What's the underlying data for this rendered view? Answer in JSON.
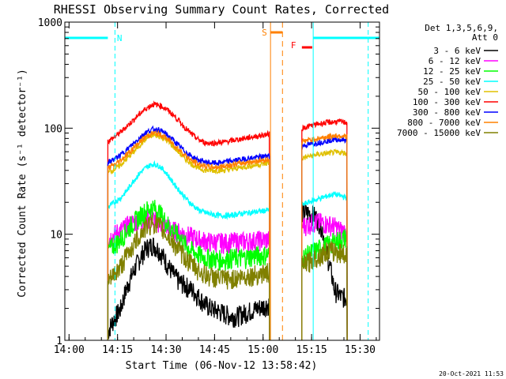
{
  "chart_data": {
    "type": "line",
    "title": "RHESSI Observing Summary Count Rates, Corrected",
    "xlabel": "Start Time (06-Nov-12 13:58:42)",
    "ylabel": "Corrected Count Rate (s⁻¹ detector⁻¹)",
    "ylog": true,
    "ylim": [
      1,
      1000
    ],
    "xlim_minutes": [
      -1.3,
      36.8
    ],
    "x_ticks": [
      {
        "m": 0,
        "label": "14:00"
      },
      {
        "m": 15,
        "label": "14:15"
      },
      {
        "m": 30,
        "label": "14:30"
      },
      {
        "m": 45,
        "label": "14:45"
      },
      {
        "m": 60,
        "label": "15:00"
      },
      {
        "m": 75,
        "label": "15:15"
      },
      {
        "m": 90,
        "label": "15:30"
      }
    ],
    "y_ticks": [
      {
        "v": 1,
        "label": "1"
      },
      {
        "v": 10,
        "label": "10"
      },
      {
        "v": 100,
        "label": "100"
      },
      {
        "v": 1000,
        "label": "1000"
      }
    ],
    "legend_header": [
      "Det 1,3,5,6,9,",
      "Att 0"
    ],
    "legend_placement": "right",
    "series": [
      {
        "name": "3 - 6 keV",
        "color": "#000000",
        "seg1": [
          [
            12,
            1.2
          ],
          [
            14,
            1.6
          ],
          [
            16,
            2.0
          ],
          [
            18,
            3.2
          ],
          [
            20,
            4.5
          ],
          [
            22,
            6.0
          ],
          [
            24,
            7.5
          ],
          [
            26,
            8.0
          ],
          [
            28,
            7.0
          ],
          [
            30,
            5.5
          ],
          [
            32,
            4.3
          ],
          [
            34,
            3.6
          ],
          [
            36,
            3.3
          ],
          [
            38,
            3.0
          ],
          [
            40,
            2.6
          ],
          [
            42,
            2.2
          ],
          [
            44,
            2.0
          ],
          [
            46,
            1.9
          ],
          [
            48,
            1.8
          ],
          [
            50,
            1.7
          ],
          [
            52,
            1.7
          ],
          [
            54,
            1.8
          ],
          [
            56,
            1.9
          ],
          [
            58,
            2.0
          ],
          [
            60,
            2.1
          ],
          [
            62,
            2.2
          ]
        ],
        "seg2": [
          [
            72,
            16
          ],
          [
            74,
            16
          ],
          [
            76,
            15
          ],
          [
            78,
            12
          ],
          [
            80,
            6
          ],
          [
            82,
            3
          ],
          [
            84,
            2.6
          ],
          [
            86,
            2.5
          ]
        ]
      },
      {
        "name": "6 - 12 keV",
        "color": "#ff00ff",
        "seg1": [
          [
            12,
            9
          ],
          [
            14,
            10
          ],
          [
            16,
            11
          ],
          [
            18,
            12
          ],
          [
            20,
            13
          ],
          [
            22,
            13.5
          ],
          [
            24,
            14
          ],
          [
            26,
            14
          ],
          [
            28,
            13
          ],
          [
            30,
            12
          ],
          [
            32,
            11
          ],
          [
            34,
            10.5
          ],
          [
            36,
            10
          ],
          [
            38,
            9.5
          ],
          [
            40,
            9
          ],
          [
            42,
            8.7
          ],
          [
            44,
            8.5
          ],
          [
            46,
            8.5
          ],
          [
            48,
            8.4
          ],
          [
            50,
            8.5
          ],
          [
            52,
            8.6
          ],
          [
            54,
            8.6
          ],
          [
            56,
            8.7
          ],
          [
            58,
            8.8
          ],
          [
            60,
            8.9
          ],
          [
            62,
            9
          ]
        ],
        "seg2": [
          [
            72,
            12
          ],
          [
            74,
            12.5
          ],
          [
            76,
            13
          ],
          [
            78,
            13
          ],
          [
            80,
            12.5
          ],
          [
            82,
            12
          ],
          [
            84,
            11
          ],
          [
            86,
            10.5
          ]
        ]
      },
      {
        "name": "12 - 25 keV",
        "color": "#00ff00",
        "seg1": [
          [
            12,
            7
          ],
          [
            14,
            8
          ],
          [
            16,
            9
          ],
          [
            18,
            11
          ],
          [
            20,
            13
          ],
          [
            22,
            15
          ],
          [
            24,
            17
          ],
          [
            26,
            18
          ],
          [
            28,
            16
          ],
          [
            30,
            13
          ],
          [
            32,
            11
          ],
          [
            34,
            9.5
          ],
          [
            36,
            8
          ],
          [
            38,
            7
          ],
          [
            40,
            6.5
          ],
          [
            42,
            6
          ],
          [
            44,
            6
          ],
          [
            46,
            5.8
          ],
          [
            48,
            5.8
          ],
          [
            50,
            6
          ],
          [
            52,
            6
          ],
          [
            54,
            6
          ],
          [
            56,
            6.2
          ],
          [
            58,
            6.3
          ],
          [
            60,
            6.4
          ],
          [
            62,
            6.5
          ]
        ],
        "seg2": [
          [
            72,
            6
          ],
          [
            74,
            6.5
          ],
          [
            76,
            7
          ],
          [
            78,
            7.5
          ],
          [
            80,
            8
          ],
          [
            82,
            8.5
          ],
          [
            84,
            9
          ],
          [
            86,
            9.5
          ]
        ]
      },
      {
        "name": "25 - 50 keV",
        "color": "#00ffff",
        "seg1": [
          [
            12,
            18
          ],
          [
            14,
            20
          ],
          [
            16,
            22
          ],
          [
            18,
            26
          ],
          [
            20,
            32
          ],
          [
            22,
            38
          ],
          [
            24,
            43
          ],
          [
            26,
            46
          ],
          [
            28,
            44
          ],
          [
            30,
            38
          ],
          [
            32,
            31
          ],
          [
            34,
            26
          ],
          [
            36,
            22
          ],
          [
            38,
            19
          ],
          [
            40,
            17
          ],
          [
            42,
            16
          ],
          [
            44,
            15.5
          ],
          [
            46,
            15
          ],
          [
            48,
            15
          ],
          [
            50,
            15
          ],
          [
            52,
            15.5
          ],
          [
            54,
            15.8
          ],
          [
            56,
            16
          ],
          [
            58,
            16.3
          ],
          [
            60,
            16.6
          ],
          [
            62,
            17
          ]
        ],
        "seg2": [
          [
            72,
            19
          ],
          [
            74,
            20
          ],
          [
            76,
            21
          ],
          [
            78,
            22
          ],
          [
            80,
            23
          ],
          [
            82,
            24
          ],
          [
            84,
            23
          ],
          [
            86,
            22
          ]
        ]
      },
      {
        "name": "50 - 100 keV",
        "color": "#e0c000",
        "seg1": [
          [
            12,
            38
          ],
          [
            14,
            41
          ],
          [
            16,
            45
          ],
          [
            18,
            52
          ],
          [
            20,
            60
          ],
          [
            22,
            70
          ],
          [
            24,
            80
          ],
          [
            26,
            86
          ],
          [
            28,
            84
          ],
          [
            30,
            77
          ],
          [
            32,
            68
          ],
          [
            34,
            59
          ],
          [
            36,
            51
          ],
          [
            38,
            46
          ],
          [
            40,
            42
          ],
          [
            42,
            40
          ],
          [
            44,
            40
          ],
          [
            46,
            40
          ],
          [
            48,
            40
          ],
          [
            50,
            41
          ],
          [
            52,
            42
          ],
          [
            54,
            43
          ],
          [
            56,
            44
          ],
          [
            58,
            45
          ],
          [
            60,
            46
          ],
          [
            62,
            47
          ]
        ],
        "seg2": [
          [
            72,
            52
          ],
          [
            74,
            54
          ],
          [
            76,
            56
          ],
          [
            78,
            57
          ],
          [
            80,
            58
          ],
          [
            82,
            59
          ],
          [
            84,
            59
          ],
          [
            86,
            58
          ]
        ]
      },
      {
        "name": "100 - 300 keV",
        "color": "#ff0000",
        "seg1": [
          [
            12,
            75
          ],
          [
            14,
            82
          ],
          [
            16,
            92
          ],
          [
            18,
            105
          ],
          [
            20,
            120
          ],
          [
            22,
            138
          ],
          [
            24,
            155
          ],
          [
            26,
            168
          ],
          [
            28,
            165
          ],
          [
            30,
            152
          ],
          [
            32,
            135
          ],
          [
            34,
            117
          ],
          [
            36,
            100
          ],
          [
            38,
            87
          ],
          [
            40,
            78
          ],
          [
            42,
            73
          ],
          [
            44,
            72
          ],
          [
            46,
            73
          ],
          [
            48,
            74
          ],
          [
            50,
            76
          ],
          [
            52,
            78
          ],
          [
            54,
            80
          ],
          [
            56,
            82
          ],
          [
            58,
            84
          ],
          [
            60,
            86
          ],
          [
            62,
            88
          ]
        ],
        "seg2": [
          [
            72,
            100
          ],
          [
            74,
            104
          ],
          [
            76,
            108
          ],
          [
            78,
            111
          ],
          [
            80,
            113
          ],
          [
            82,
            115
          ],
          [
            84,
            115
          ],
          [
            86,
            113
          ]
        ]
      },
      {
        "name": "300 - 800 keV",
        "color": "#0000ff",
        "seg1": [
          [
            12,
            47
          ],
          [
            14,
            51
          ],
          [
            16,
            56
          ],
          [
            18,
            63
          ],
          [
            20,
            72
          ],
          [
            22,
            82
          ],
          [
            24,
            92
          ],
          [
            26,
            98
          ],
          [
            28,
            96
          ],
          [
            30,
            88
          ],
          [
            32,
            78
          ],
          [
            34,
            68
          ],
          [
            36,
            60
          ],
          [
            38,
            54
          ],
          [
            40,
            50
          ],
          [
            42,
            48
          ],
          [
            44,
            47
          ],
          [
            46,
            47
          ],
          [
            48,
            48
          ],
          [
            50,
            49
          ],
          [
            52,
            50
          ],
          [
            54,
            51
          ],
          [
            56,
            52
          ],
          [
            58,
            53
          ],
          [
            60,
            54
          ],
          [
            62,
            56
          ]
        ],
        "seg2": [
          [
            72,
            68
          ],
          [
            74,
            70
          ],
          [
            76,
            72
          ],
          [
            78,
            74
          ],
          [
            80,
            76
          ],
          [
            82,
            78
          ],
          [
            84,
            78
          ],
          [
            86,
            77
          ]
        ]
      },
      {
        "name": "800 - 7000 keV",
        "color": "#ff8000",
        "seg1": [
          [
            12,
            42
          ],
          [
            14,
            45
          ],
          [
            16,
            50
          ],
          [
            18,
            57
          ],
          [
            20,
            65
          ],
          [
            22,
            75
          ],
          [
            24,
            84
          ],
          [
            26,
            90
          ],
          [
            28,
            88
          ],
          [
            30,
            81
          ],
          [
            32,
            72
          ],
          [
            34,
            63
          ],
          [
            36,
            55
          ],
          [
            38,
            49
          ],
          [
            40,
            46
          ],
          [
            42,
            44
          ],
          [
            44,
            43
          ],
          [
            46,
            43
          ],
          [
            48,
            44
          ],
          [
            50,
            45
          ],
          [
            52,
            46
          ],
          [
            54,
            47
          ],
          [
            56,
            48
          ],
          [
            58,
            49
          ],
          [
            60,
            50
          ],
          [
            62,
            51
          ]
        ],
        "seg2": [
          [
            72,
            75
          ],
          [
            74,
            77
          ],
          [
            76,
            79
          ],
          [
            78,
            81
          ],
          [
            80,
            83
          ],
          [
            82,
            85
          ],
          [
            84,
            85
          ],
          [
            86,
            84
          ]
        ]
      },
      {
        "name": "7000 - 15000 keV",
        "color": "#808000",
        "seg1": [
          [
            12,
            3.5
          ],
          [
            14,
            4.2
          ],
          [
            16,
            5
          ],
          [
            18,
            6.5
          ],
          [
            20,
            8
          ],
          [
            22,
            10
          ],
          [
            24,
            12
          ],
          [
            26,
            13
          ],
          [
            28,
            12
          ],
          [
            30,
            10
          ],
          [
            32,
            8.5
          ],
          [
            34,
            7.2
          ],
          [
            36,
            6
          ],
          [
            38,
            5.2
          ],
          [
            40,
            4.6
          ],
          [
            42,
            4.2
          ],
          [
            44,
            4
          ],
          [
            46,
            3.9
          ],
          [
            48,
            3.8
          ],
          [
            50,
            3.8
          ],
          [
            52,
            3.9
          ],
          [
            54,
            4
          ],
          [
            56,
            4.1
          ],
          [
            58,
            4.2
          ],
          [
            60,
            4.3
          ],
          [
            62,
            4.4
          ]
        ],
        "seg2": [
          [
            72,
            5
          ],
          [
            74,
            5.5
          ],
          [
            76,
            6
          ],
          [
            78,
            6.5
          ],
          [
            80,
            7
          ],
          [
            82,
            7
          ],
          [
            84,
            6.8
          ],
          [
            86,
            6.5
          ]
        ]
      }
    ],
    "annotations": [
      {
        "label": "N",
        "color": "#00ffff"
      },
      {
        "label": "S",
        "color": "#ff8000"
      },
      {
        "label": "F",
        "color": "#ff0000"
      }
    ]
  },
  "footer_date": "20-Oct-2021 11:53"
}
